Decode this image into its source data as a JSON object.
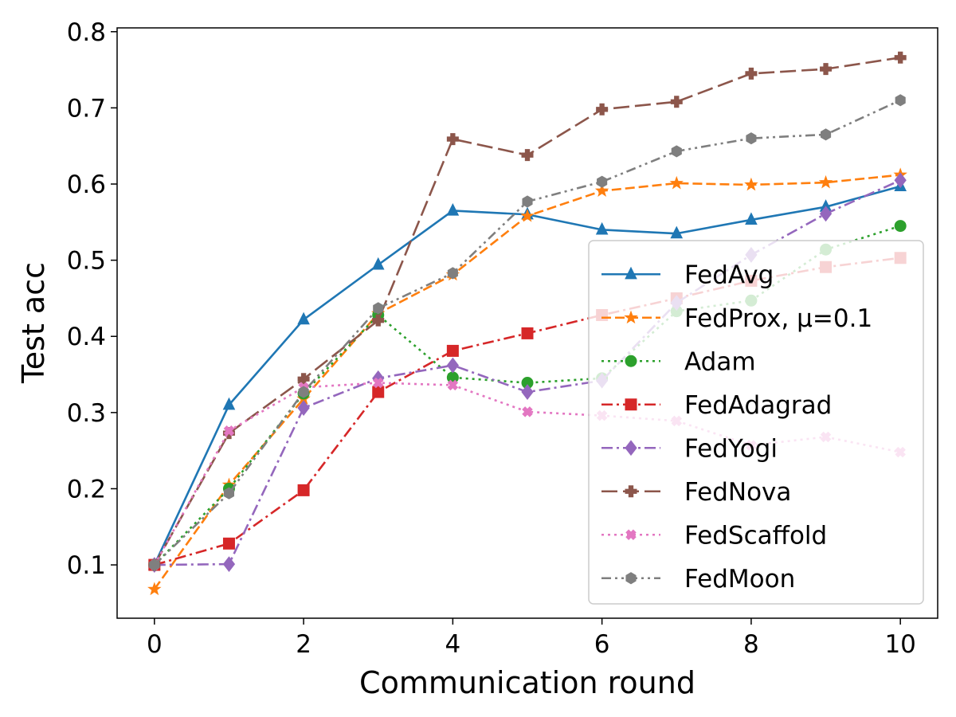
{
  "chart_data": {
    "type": "line",
    "title": "",
    "xlabel": "Communication round",
    "ylabel": "Test acc",
    "xlim": [
      -0.5,
      10.5
    ],
    "ylim": [
      0.03,
      0.805
    ],
    "xticks": [
      0,
      2,
      4,
      6,
      8,
      10
    ],
    "yticks": [
      0.1,
      0.2,
      0.3,
      0.4,
      0.5,
      0.6,
      0.7,
      0.8
    ],
    "grid": false,
    "legend_position": "lower-right",
    "x": [
      0,
      1,
      2,
      3,
      4,
      5,
      6,
      7,
      8,
      9,
      10
    ],
    "series": [
      {
        "name": "FedAvg",
        "color": "#1f77b4",
        "marker": "triangle",
        "dash": "solid",
        "values": [
          0.1,
          0.31,
          0.422,
          0.494,
          0.565,
          0.56,
          0.54,
          0.535,
          0.553,
          0.57,
          0.597
        ]
      },
      {
        "name": "FedProx, μ=0.1",
        "color": "#ff7f0e",
        "marker": "star",
        "dash": "dashed",
        "values": [
          0.068,
          0.205,
          0.318,
          0.43,
          0.481,
          0.558,
          0.591,
          0.601,
          0.599,
          0.602,
          0.612
        ]
      },
      {
        "name": "Adam",
        "color": "#2ca02c",
        "marker": "circle",
        "dash": "dotted",
        "values": [
          0.1,
          0.2,
          0.325,
          0.428,
          0.346,
          0.339,
          0.345,
          0.433,
          0.447,
          0.514,
          0.545
        ]
      },
      {
        "name": "FedAdagrad",
        "color": "#d62728",
        "marker": "square",
        "dash": "dashdot",
        "values": [
          0.1,
          0.128,
          0.198,
          0.327,
          0.381,
          0.404,
          0.428,
          0.45,
          0.473,
          0.491,
          0.503
        ]
      },
      {
        "name": "FedYogi",
        "color": "#9467bd",
        "marker": "diamond",
        "dash": "dashdot",
        "values": [
          0.1,
          0.101,
          0.306,
          0.345,
          0.362,
          0.327,
          0.342,
          0.444,
          0.507,
          0.561,
          0.605
        ]
      },
      {
        "name": "FedNova",
        "color": "#8c564b",
        "marker": "plus",
        "dash": "longdash",
        "values": [
          0.1,
          0.273,
          0.344,
          0.421,
          0.659,
          0.638,
          0.698,
          0.708,
          0.745,
          0.751,
          0.766
        ]
      },
      {
        "name": "FedScaffold",
        "color": "#e377c2",
        "marker": "x",
        "dash": "dotted",
        "values": [
          0.1,
          0.276,
          0.333,
          0.339,
          0.336,
          0.301,
          0.296,
          0.289,
          0.257,
          0.268,
          0.248
        ]
      },
      {
        "name": "FedMoon",
        "color": "#7f7f7f",
        "marker": "hexagon",
        "dash": "dashdotdot",
        "values": [
          0.1,
          0.194,
          0.327,
          0.437,
          0.483,
          0.577,
          0.603,
          0.643,
          0.66,
          0.665,
          0.71
        ]
      }
    ]
  }
}
